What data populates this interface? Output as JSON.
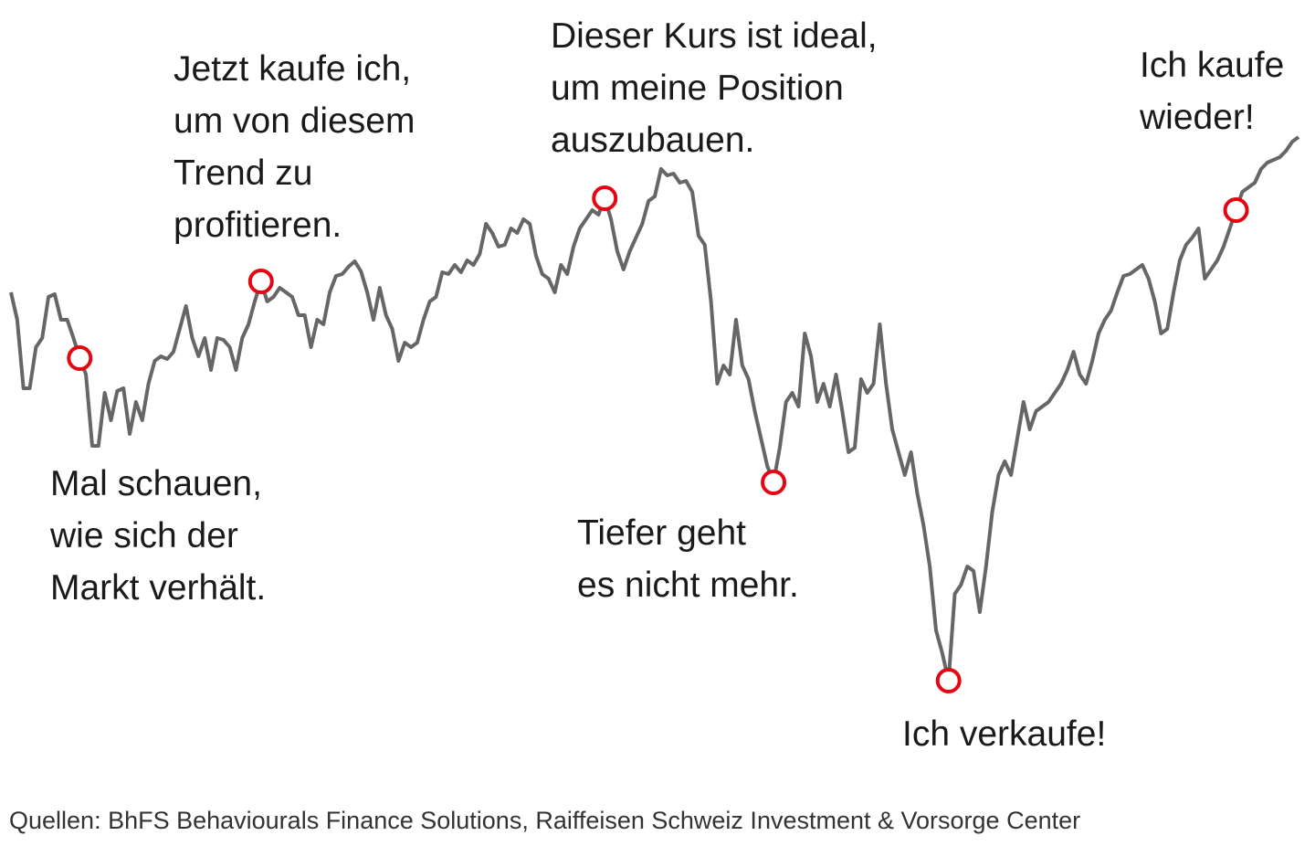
{
  "chart_data": {
    "type": "line",
    "series": [
      {
        "color": "#666666",
        "values": [
          580,
          550,
          475,
          475,
          520,
          530,
          575,
          578,
          550,
          550,
          530,
          508,
          490,
          412,
          412,
          470,
          440,
          472,
          475,
          425,
          460,
          440,
          480,
          505,
          510,
          507,
          515,
          540,
          565,
          530,
          510,
          530,
          495,
          530,
          528,
          520,
          495,
          530,
          545,
          570,
          592,
          570,
          575,
          585,
          580,
          575,
          555,
          555,
          520,
          550,
          545,
          580,
          598,
          600,
          608,
          614,
          603,
          580,
          550,
          585,
          555,
          540,
          505,
          525,
          520,
          525,
          550,
          570,
          575,
          602,
          600,
          610,
          602,
          615,
          610,
          622,
          655,
          645,
          630,
          632,
          650,
          645,
          660,
          655,
          620,
          600,
          595,
          580,
          610,
          600,
          630,
          650,
          660,
          670,
          665,
          683,
          660,
          625,
          605,
          625,
          640,
          655,
          680,
          685,
          715,
          708,
          710,
          700,
          702,
          690,
          642,
          632,
          570,
          480,
          500,
          490,
          550,
          500,
          485,
          450,
          420,
          390,
          372,
          410,
          460,
          470,
          455,
          535,
          510,
          460,
          480,
          455,
          490,
          450,
          405,
          410,
          485,
          470,
          480,
          545,
          480,
          430,
          405,
          380,
          405,
          360,
          325,
          280,
          210,
          185,
          155,
          250,
          260,
          280,
          275,
          230,
          280,
          340,
          380,
          395,
          380,
          420,
          460,
          430,
          450,
          455,
          460,
          470,
          480,
          495,
          515,
          490,
          480,
          505,
          535,
          550,
          560,
          580,
          598,
          600,
          605,
          610,
          595,
          570,
          535,
          540,
          580,
          615,
          632,
          640,
          650,
          595,
          605,
          615,
          630,
          650,
          670,
          690,
          695,
          700,
          715,
          722,
          725,
          728,
          735,
          745,
          750
        ]
      }
    ],
    "ylim": [
      100,
      800
    ],
    "marker_color": "#e30613",
    "annotations": [
      {
        "x": 11,
        "lines": [
          "Mal schauen,",
          "wie sich der",
          "Markt verhält."
        ]
      },
      {
        "x": 40,
        "lines": [
          "Jetzt kaufe ich,",
          "um von diesem",
          "Trend zu",
          "profitieren."
        ]
      },
      {
        "x": 95,
        "lines": [
          "Dieser Kurs ist ideal,",
          "um meine Position",
          "auszubauen."
        ]
      },
      {
        "x": 122,
        "lines": [
          "Tiefer geht",
          "es nicht mehr."
        ]
      },
      {
        "x": 150,
        "lines": [
          "Ich verkaufe!"
        ]
      },
      {
        "x": 196,
        "lines": [
          "Ich kaufe",
          "wieder!"
        ]
      }
    ],
    "source": "Quellen: BhFS Behaviourals Finance Solutions, Raiffeisen Schweiz Investment & Vorsorge Center"
  }
}
